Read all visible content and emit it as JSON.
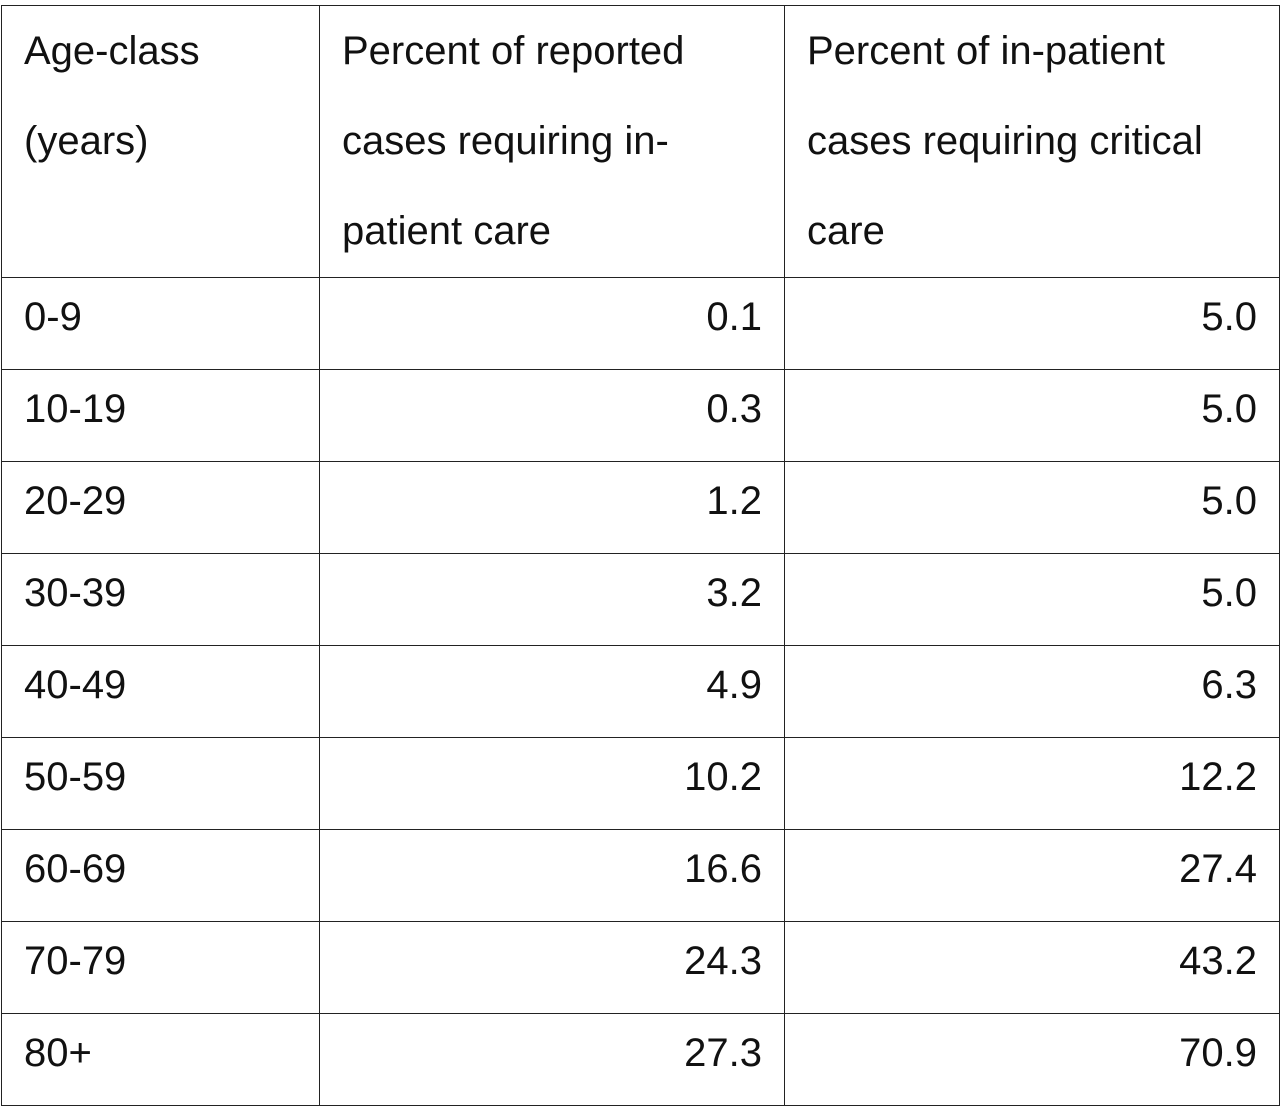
{
  "table": {
    "headers": [
      "Age-class (years)",
      "Percent of reported cases requiring in-patient care",
      "Percent of in-patient cases requiring critical care"
    ],
    "rows": [
      {
        "age": "0-9",
        "inpatient": "0.1",
        "critical": "5.0"
      },
      {
        "age": "10-19",
        "inpatient": "0.3",
        "critical": "5.0"
      },
      {
        "age": "20-29",
        "inpatient": "1.2",
        "critical": "5.0"
      },
      {
        "age": "30-39",
        "inpatient": "3.2",
        "critical": "5.0"
      },
      {
        "age": "40-49",
        "inpatient": "4.9",
        "critical": "6.3"
      },
      {
        "age": "50-59",
        "inpatient": "10.2",
        "critical": "12.2"
      },
      {
        "age": "60-69",
        "inpatient": "16.6",
        "critical": "27.4"
      },
      {
        "age": "70-79",
        "inpatient": "24.3",
        "critical": "43.2"
      },
      {
        "age": "80+",
        "inpatient": "27.3",
        "critical": "70.9"
      }
    ]
  }
}
